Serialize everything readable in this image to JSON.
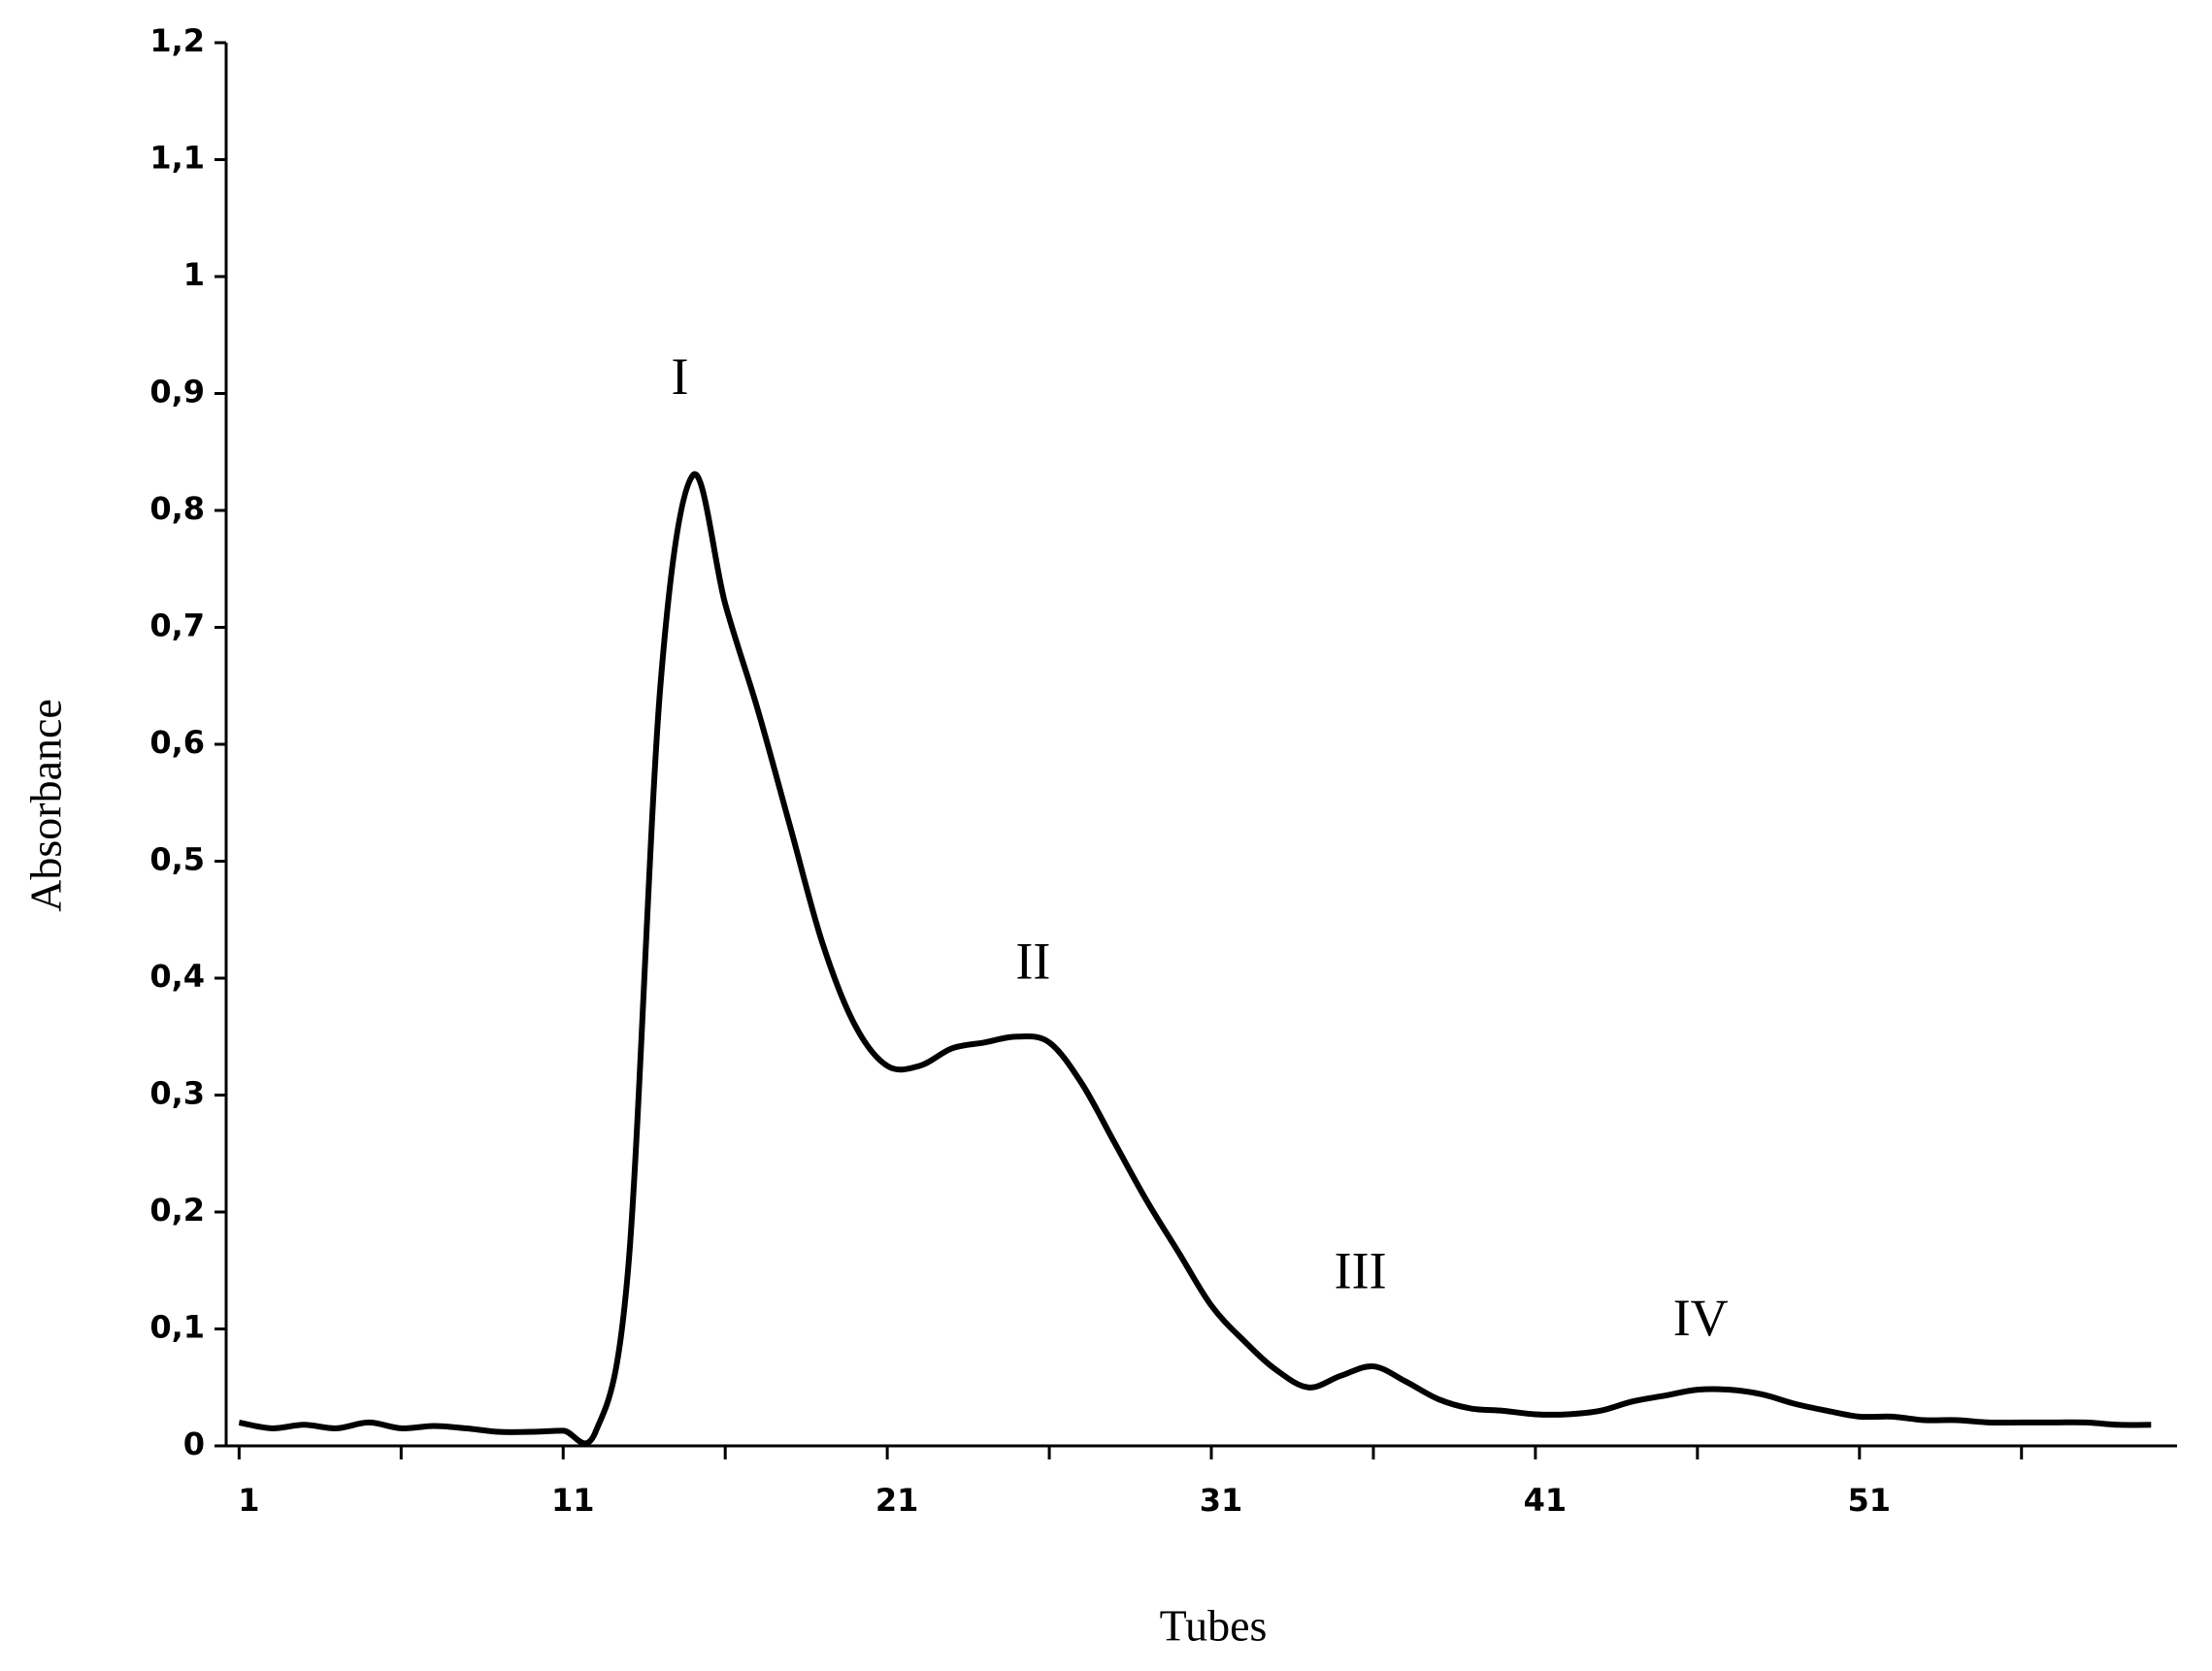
{
  "chart_data": {
    "type": "line",
    "x_label": "Tubes",
    "y_label": "Absorbance",
    "x": [
      1,
      2,
      3,
      4,
      5,
      6,
      7,
      8,
      9,
      10,
      11,
      12,
      13,
      14,
      15,
      16,
      17,
      18,
      19,
      20,
      21,
      22,
      23,
      24,
      25,
      26,
      27,
      28,
      29,
      30,
      31,
      32,
      33,
      34,
      35,
      36,
      37,
      38,
      39,
      40,
      41,
      42,
      43,
      44,
      45,
      46,
      47,
      48,
      49,
      50,
      51,
      52,
      53,
      54,
      55,
      56,
      57,
      58,
      59,
      60
    ],
    "series": [
      {
        "color": "#000000",
        "values": [
          0.02,
          0.015,
          0.018,
          0.015,
          0.02,
          0.015,
          0.017,
          0.015,
          0.012,
          0.012,
          0.013,
          0.012,
          0.15,
          0.65,
          0.83,
          0.72,
          0.63,
          0.53,
          0.43,
          0.36,
          0.325,
          0.325,
          0.34,
          0.345,
          0.35,
          0.345,
          0.31,
          0.26,
          0.21,
          0.165,
          0.12,
          0.09,
          0.065,
          0.05,
          0.06,
          0.068,
          0.055,
          0.04,
          0.032,
          0.03,
          0.027,
          0.027,
          0.03,
          0.038,
          0.043,
          0.048,
          0.048,
          0.044,
          0.036,
          0.03,
          0.025,
          0.025,
          0.022,
          0.022,
          0.02,
          0.02,
          0.02,
          0.02,
          0.018,
          0.018
        ]
      }
    ],
    "annotations": [
      "I",
      "II",
      "III",
      "IV"
    ],
    "xlim": [
      0.6,
      60.8
    ],
    "xticks": [
      1,
      11,
      21,
      31,
      41,
      51
    ],
    "x_minor_ticks": [
      6,
      16,
      26,
      36,
      46,
      56
    ],
    "ylim": [
      0,
      1.2
    ],
    "yticks": [
      0,
      {
        "value": 0.1,
        "label": "0,1"
      },
      {
        "value": 0.2,
        "label": "0,2"
      },
      {
        "value": 0.3,
        "label": "0,3"
      },
      {
        "value": 0.4,
        "label": "0,4"
      },
      {
        "value": 0.5,
        "label": "0,5"
      },
      {
        "value": 0.6,
        "label": "0,6"
      },
      {
        "value": 0.7,
        "label": "0,7"
      },
      {
        "value": 0.8,
        "label": "0,8"
      },
      {
        "value": 0.9,
        "label": "0,9"
      },
      1,
      {
        "value": 1.1,
        "label": "1,1"
      },
      {
        "value": 1.2,
        "label": "1,2"
      }
    ],
    "grid": false
  }
}
